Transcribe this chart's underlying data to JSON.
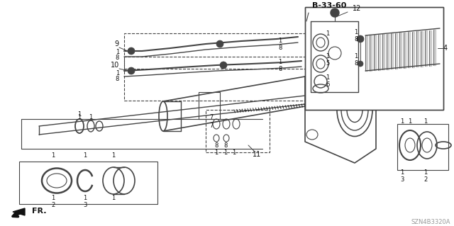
{
  "bg_color": "#ffffff",
  "line_color": "#444444",
  "dark_color": "#111111",
  "watermark": "SZN4B3320A",
  "box_label": "B-33-60",
  "figsize": [
    6.4,
    3.19
  ],
  "dpi": 100
}
